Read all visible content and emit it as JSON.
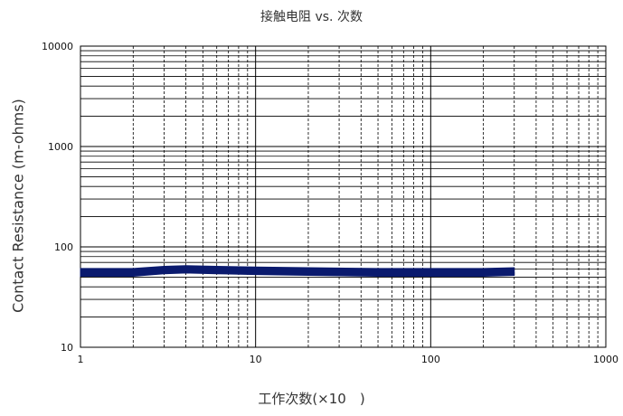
{
  "chart_data": {
    "type": "line",
    "title": "接触电阻 vs. 次数",
    "xlabel": "工作次数(×10　)",
    "ylabel": "Contact Resistance (m-ohms)",
    "x_scale": "log",
    "y_scale": "log",
    "xlim": [
      1,
      1000
    ],
    "ylim": [
      10,
      10000
    ],
    "x_ticks": [
      "1",
      "10",
      "100",
      "1000"
    ],
    "y_ticks": [
      "10",
      "100",
      "1000",
      "10000"
    ],
    "grid": true,
    "series": [
      {
        "color": "#0a1a6e",
        "x": [
          1,
          2,
          3,
          4,
          6,
          10,
          20,
          50,
          100,
          200,
          300
        ],
        "y": [
          56,
          56,
          59,
          60,
          59,
          58,
          57,
          56,
          56,
          56,
          57
        ],
        "band_low": [
          51,
          51,
          54,
          55,
          54,
          53,
          52,
          51,
          51,
          51,
          52
        ],
        "band_high": [
          61,
          61,
          64,
          65,
          64,
          63,
          62,
          61,
          61,
          61,
          62
        ]
      }
    ]
  }
}
